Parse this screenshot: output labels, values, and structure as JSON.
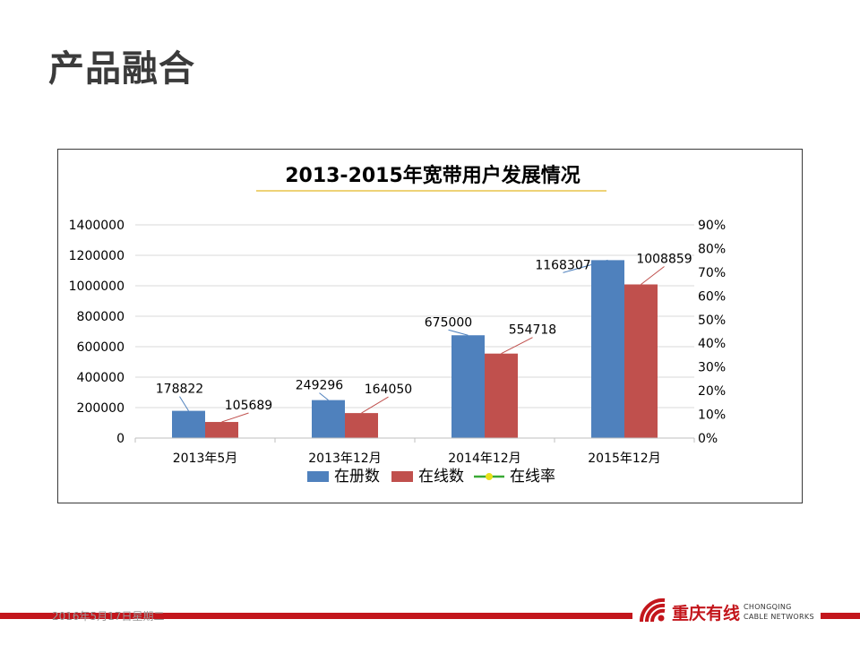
{
  "slide": {
    "title": "产品融合",
    "footer_date": "2016年5月17日星期二"
  },
  "logo": {
    "cn": "重庆有线",
    "en_line1": "CHONGQING",
    "en_line2": "CABLE NETWORKS"
  },
  "colors": {
    "series1": "#4f81bd",
    "series2": "#c0504d",
    "series3_line": "#3aa935",
    "series3_marker": "#e8e01a",
    "brand_red": "#c3161c",
    "title_underline": "#e8c44a"
  },
  "chart_data": {
    "type": "bar",
    "title": "2013-2015年宽带用户发展情况",
    "categories": [
      "2013年5月",
      "2013年12月",
      "2014年12月",
      "2015年12月"
    ],
    "series": [
      {
        "name": "在册数",
        "values": [
          178822,
          249296,
          675000,
          1168307
        ]
      },
      {
        "name": "在线数",
        "values": [
          105689,
          164050,
          554718,
          1008859
        ]
      }
    ],
    "line_series": {
      "name": "在线率",
      "axis": "right",
      "values": []
    },
    "ylim": [
      0,
      1400000
    ],
    "yticks": [
      "0",
      "200000",
      "400000",
      "600000",
      "800000",
      "1000000",
      "1200000",
      "1400000"
    ],
    "y2lim": [
      0,
      0.9
    ],
    "y2ticks": [
      "0%",
      "10%",
      "20%",
      "30%",
      "40%",
      "50%",
      "60%",
      "70%",
      "80%",
      "90%"
    ],
    "grid": true,
    "legend": "bottom"
  }
}
